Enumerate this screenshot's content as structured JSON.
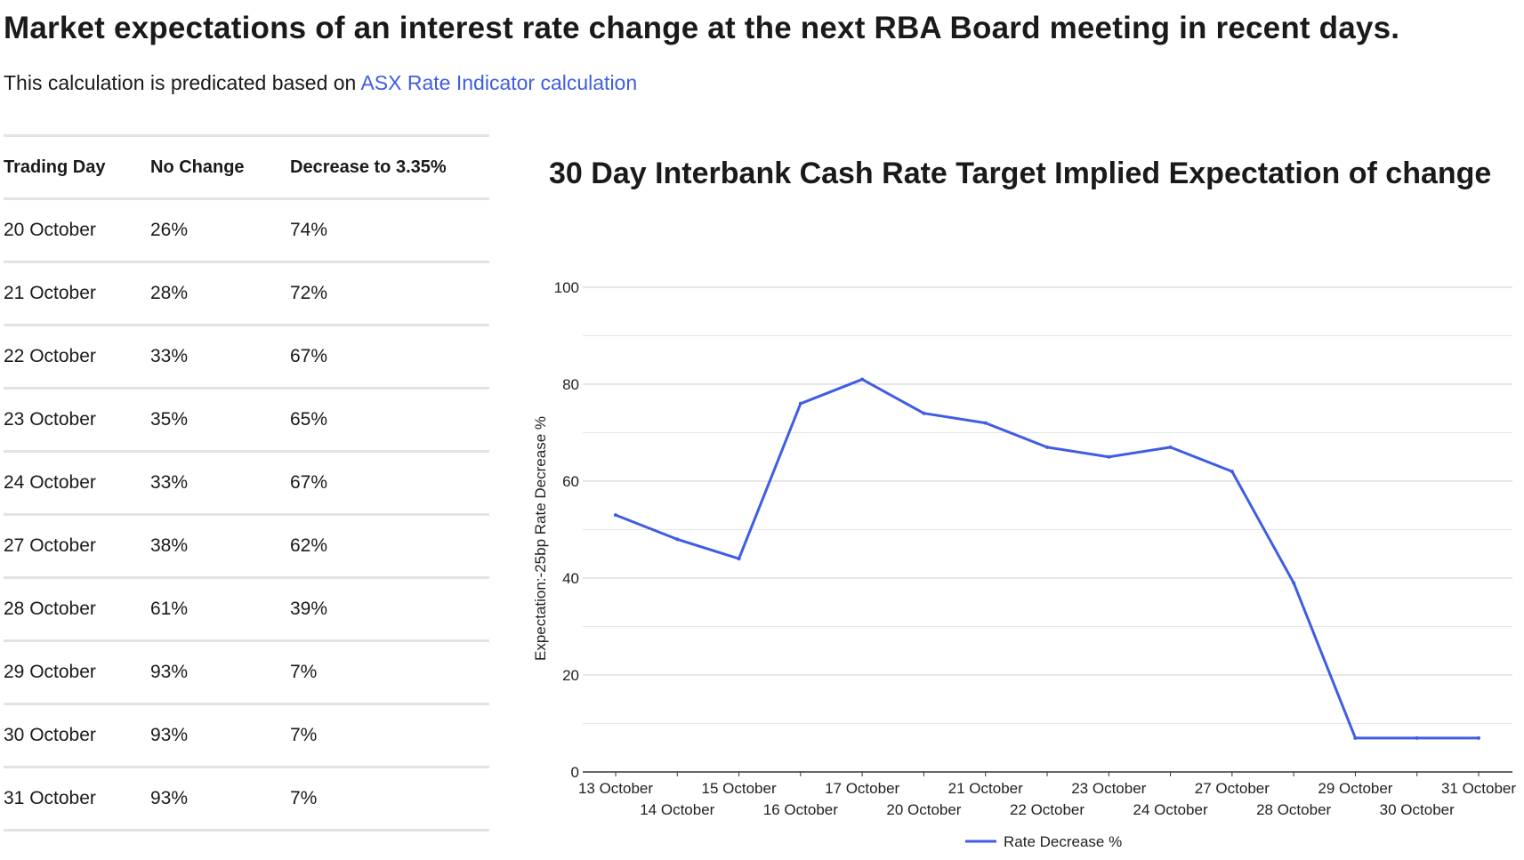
{
  "header": {
    "title": "Market expectations of an interest rate change at the next RBA Board meeting in recent days.",
    "subtitle_prefix": "This calculation is predicated based on ",
    "subtitle_link": "ASX Rate Indicator calculation"
  },
  "table": {
    "columns": [
      "Trading Day",
      "No Change",
      "Decrease to 3.35%"
    ],
    "rows": [
      [
        "20 October",
        "26%",
        "74%"
      ],
      [
        "21 October",
        "28%",
        "72%"
      ],
      [
        "22 October",
        "33%",
        "67%"
      ],
      [
        "23 October",
        "35%",
        "65%"
      ],
      [
        "24 October",
        "33%",
        "67%"
      ],
      [
        "27 October",
        "38%",
        "62%"
      ],
      [
        "28 October",
        "61%",
        "39%"
      ],
      [
        "29 October",
        "93%",
        "7%"
      ],
      [
        "30 October",
        "93%",
        "7%"
      ],
      [
        "31 October",
        "93%",
        "7%"
      ]
    ]
  },
  "chart_data": {
    "type": "line",
    "title": "30 Day Interbank Cash Rate Target Implied Expectation of change",
    "xlabel": "",
    "ylabel": "Expectation:-25bp Rate Decrease %",
    "ylim": [
      0,
      100
    ],
    "yticks": [
      0,
      20,
      40,
      60,
      80,
      100
    ],
    "grid": true,
    "legend_position": "bottom",
    "categories": [
      "13 October",
      "14 October",
      "15 October",
      "16 October",
      "17 October",
      "20 October",
      "21 October",
      "22 October",
      "23 October",
      "24 October",
      "27 October",
      "28 October",
      "29 October",
      "30 October",
      "31 October"
    ],
    "series": [
      {
        "name": "Rate Decrease %",
        "color": "#3f5de3",
        "values": [
          53,
          48,
          44,
          76,
          81,
          74,
          72,
          67,
          65,
          67,
          62,
          39,
          7,
          7,
          7
        ]
      }
    ]
  }
}
